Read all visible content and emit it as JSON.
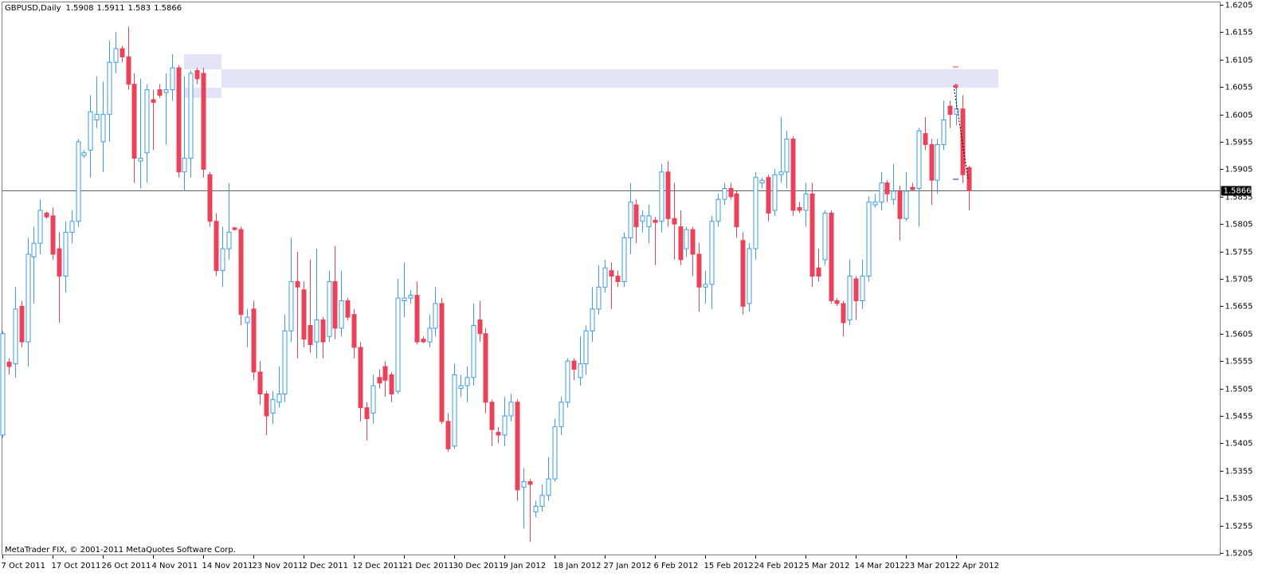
{
  "chart_data": {
    "type": "candlestick",
    "title": "GBPUSD,Daily",
    "copyright": "MetaTrader FIX, © 2001-2011 MetaQuotes Software Corp.",
    "up_color": "#3d9be9",
    "down_color": "#e8435a",
    "ylim": [
      1.5205,
      1.6205
    ],
    "yticks": [
      1.6205,
      1.6155,
      1.6105,
      1.6055,
      1.6005,
      1.5955,
      1.5905,
      1.5855,
      1.5805,
      1.5755,
      1.5705,
      1.5655,
      1.5605,
      1.5555,
      1.5505,
      1.5455,
      1.5405,
      1.5355,
      1.5305,
      1.5255,
      1.5205
    ],
    "categories": [
      "7 Oct 2011",
      null,
      null,
      null,
      null,
      null,
      null,
      null,
      "17 Oct 2011",
      null,
      null,
      null,
      null,
      null,
      null,
      null,
      "26 Oct 2011",
      null,
      null,
      null,
      null,
      null,
      null,
      null,
      "4 Nov 2011",
      null,
      null,
      null,
      null,
      null,
      null,
      null,
      "14 Nov 2011",
      null,
      null,
      null,
      null,
      null,
      null,
      null,
      "23 Nov 2011",
      null,
      null,
      null,
      null,
      null,
      null,
      null,
      "2 Dec 2011",
      null,
      null,
      null,
      null,
      null,
      null,
      null,
      "12 Dec 2011",
      null,
      null,
      null,
      null,
      null,
      null,
      null,
      "21 Dec 2011",
      null,
      null,
      null,
      null,
      null,
      null,
      null,
      "30 Dec 2011",
      null,
      null,
      null,
      null,
      null,
      null,
      null,
      "9 Jan 2012",
      null,
      null,
      null,
      null,
      null,
      null,
      null,
      "18 Jan 2012",
      null,
      null,
      null,
      null,
      null,
      null,
      null,
      "27 Jan 2012",
      null,
      null,
      null,
      null,
      null,
      null,
      null,
      "6 Feb 2012",
      null,
      null,
      null,
      null,
      null,
      null,
      null,
      "15 Feb 2012",
      null,
      null,
      null,
      null,
      null,
      null,
      null,
      "24 Feb 2012",
      null,
      null,
      null,
      null,
      null,
      null,
      null,
      "5 Mar 2012",
      null,
      null,
      null,
      null,
      null,
      null,
      null,
      "14 Mar 2012",
      null,
      null,
      null,
      null,
      null,
      null,
      null,
      "23 Mar 2012",
      null,
      null,
      null,
      null,
      null,
      null,
      null,
      "2 Apr 2012",
      null,
      null
    ],
    "open": [
      1.542,
      1.5553,
      1.555,
      1.5655,
      1.559,
      1.5745,
      1.577,
      1.5825,
      1.582,
      1.576,
      1.571,
      1.579,
      1.581,
      1.593,
      1.594,
      1.5995,
      1.5955,
      1.6005,
      1.61,
      1.6125,
      1.611,
      1.606,
      1.592,
      1.5935,
      1.6032,
      1.605,
      1.6045,
      1.605,
      1.609,
      1.59,
      1.5925,
      1.6085,
      1.608,
      1.5895,
      1.581,
      1.572,
      1.576,
      1.5798,
      1.5795,
      1.5625,
      1.565,
      1.5535,
      1.5495,
      1.546,
      1.548,
      1.5495,
      1.561,
      1.57,
      1.5685,
      1.562,
      1.559,
      1.563,
      1.56,
      1.57,
      1.5615,
      1.5665,
      1.564,
      1.558,
      1.547,
      1.546,
      1.5525,
      1.5545,
      1.553,
      1.55,
      1.5665,
      1.567,
      1.5675,
      1.5595,
      1.559,
      1.5615,
      1.566,
      1.5445,
      1.54,
      1.5505,
      1.551,
      1.5525,
      1.563,
      1.5605,
      1.548,
      1.5425,
      1.542,
      1.5455,
      1.548,
      1.5325,
      1.5335,
      1.528,
      1.529,
      1.531,
      1.534,
      1.5435,
      1.548,
      1.5555,
      1.5525,
      1.555,
      1.561,
      1.565,
      1.569,
      1.572,
      1.571,
      1.57,
      1.578,
      1.584,
      1.581,
      1.58,
      1.5812,
      1.581,
      1.59,
      1.5815,
      1.58,
      1.576,
      1.5795,
      1.575,
      1.569,
      1.5695,
      1.581,
      1.585,
      1.587,
      1.586,
      1.5775,
      1.566,
      1.576,
      1.588,
      1.589,
      1.583,
      1.5895,
      1.59,
      1.596,
      1.5835,
      1.583,
      1.586,
      1.5725,
      1.574,
      1.5825,
      1.5665,
      1.566,
      1.563,
      1.5705,
      1.5665,
      1.571,
      1.584,
      1.5845,
      1.588,
      1.585,
      1.5865,
      1.5815,
      1.5872,
      1.587,
      1.597,
      1.595,
      1.5885,
      1.595,
      1.602,
      1.6005,
      1.6015,
      1.5908
    ],
    "high": [
      1.561,
      1.556,
      1.569,
      1.5665,
      1.578,
      1.58,
      1.585,
      1.5828,
      1.5835,
      1.579,
      1.581,
      1.583,
      1.596,
      1.594,
      1.604,
      1.6075,
      1.6065,
      1.614,
      1.6155,
      1.613,
      1.6165,
      1.608,
      1.607,
      1.606,
      1.605,
      1.606,
      1.608,
      1.6115,
      1.6095,
      1.6075,
      1.6085,
      1.609,
      1.609,
      1.59,
      1.5825,
      1.58,
      1.588,
      1.58,
      1.58,
      1.565,
      1.5665,
      1.5555,
      1.55,
      1.55,
      1.5545,
      1.564,
      1.578,
      1.5755,
      1.57,
      1.574,
      1.576,
      1.5635,
      1.572,
      1.5765,
      1.572,
      1.567,
      1.565,
      1.559,
      1.548,
      1.553,
      1.554,
      1.5555,
      1.5535,
      1.5705,
      1.5735,
      1.5685,
      1.57,
      1.56,
      1.564,
      1.569,
      1.567,
      1.546,
      1.555,
      1.553,
      1.5545,
      1.566,
      1.5665,
      1.5615,
      1.5485,
      1.5435,
      1.549,
      1.5495,
      1.5485,
      1.536,
      1.534,
      1.53,
      1.533,
      1.538,
      1.545,
      1.549,
      1.556,
      1.556,
      1.56,
      1.562,
      1.569,
      1.573,
      1.574,
      1.5735,
      1.572,
      1.579,
      1.588,
      1.585,
      1.583,
      1.584,
      1.5818,
      1.5915,
      1.592,
      1.588,
      1.583,
      1.58,
      1.58,
      1.577,
      1.572,
      1.582,
      1.586,
      1.588,
      1.588,
      1.5865,
      1.579,
      1.577,
      1.59,
      1.589,
      1.5895,
      1.5905,
      1.6,
      1.5975,
      1.5965,
      1.5845,
      1.588,
      1.588,
      1.576,
      1.583,
      1.583,
      1.567,
      1.5665,
      1.574,
      1.571,
      1.574,
      1.5855,
      1.586,
      1.59,
      1.5885,
      1.5915,
      1.5875,
      1.59,
      1.588,
      1.598,
      1.6,
      1.596,
      1.596,
      1.603,
      1.603,
      1.6055,
      1.604,
      1.5911
    ],
    "low": [
      1.5415,
      1.553,
      1.5525,
      1.558,
      1.5545,
      1.566,
      1.575,
      1.5815,
      1.574,
      1.5625,
      1.568,
      1.577,
      1.58,
      1.5925,
      1.589,
      1.598,
      1.59,
      1.5955,
      1.608,
      1.61,
      1.605,
      1.588,
      1.587,
      1.588,
      1.594,
      1.6035,
      1.595,
      1.603,
      1.589,
      1.5865,
      1.589,
      1.606,
      1.589,
      1.58,
      1.571,
      1.569,
      1.574,
      1.5793,
      1.562,
      1.558,
      1.552,
      1.5475,
      1.542,
      1.544,
      1.547,
      1.548,
      1.559,
      1.556,
      1.558,
      1.557,
      1.556,
      1.556,
      1.559,
      1.5595,
      1.56,
      1.563,
      1.556,
      1.5445,
      1.541,
      1.544,
      1.5505,
      1.549,
      1.548,
      1.5495,
      1.5635,
      1.566,
      1.5585,
      1.5588,
      1.558,
      1.56,
      1.544,
      1.539,
      1.5395,
      1.549,
      1.548,
      1.551,
      1.559,
      1.546,
      1.54,
      1.5405,
      1.54,
      1.5445,
      1.53,
      1.525,
      1.5225,
      1.527,
      1.528,
      1.53,
      1.5335,
      1.542,
      1.547,
      1.552,
      1.551,
      1.553,
      1.559,
      1.564,
      1.568,
      1.565,
      1.569,
      1.569,
      1.575,
      1.577,
      1.579,
      1.577,
      1.573,
      1.579,
      1.58,
      1.574,
      1.573,
      1.5745,
      1.571,
      1.5645,
      1.566,
      1.565,
      1.58,
      1.584,
      1.585,
      1.578,
      1.564,
      1.5645,
      1.574,
      1.587,
      1.581,
      1.582,
      1.588,
      1.587,
      1.582,
      1.5825,
      1.58,
      1.569,
      1.57,
      1.573,
      1.566,
      1.5655,
      1.56,
      1.562,
      1.563,
      1.565,
      1.57,
      1.5835,
      1.583,
      1.5845,
      1.584,
      1.5775,
      1.581,
      1.5865,
      1.58,
      1.594,
      1.584,
      1.586,
      1.594,
      1.598,
      1.5985,
      1.588,
      1.583
    ],
    "close": [
      1.5605,
      1.5545,
      1.565,
      1.559,
      1.575,
      1.577,
      1.583,
      1.5818,
      1.575,
      1.571,
      1.579,
      1.581,
      1.5955,
      1.5935,
      1.601,
      1.6005,
      1.6005,
      1.61,
      1.6125,
      1.611,
      1.606,
      1.5925,
      1.5925,
      1.605,
      1.6027,
      1.604,
      1.605,
      1.609,
      1.59,
      1.5925,
      1.608,
      1.607,
      1.5905,
      1.581,
      1.572,
      1.576,
      1.579,
      1.5795,
      1.564,
      1.5635,
      1.5535,
      1.5495,
      1.5455,
      1.5485,
      1.5495,
      1.561,
      1.57,
      1.569,
      1.5595,
      1.5585,
      1.563,
      1.559,
      1.57,
      1.5615,
      1.5665,
      1.5635,
      1.558,
      1.547,
      1.545,
      1.551,
      1.5515,
      1.552,
      1.5495,
      1.567,
      1.567,
      1.5675,
      1.559,
      1.559,
      1.5615,
      1.566,
      1.5445,
      1.5395,
      1.553,
      1.551,
      1.5525,
      1.562,
      1.5605,
      1.548,
      1.543,
      1.542,
      1.5455,
      1.548,
      1.532,
      1.5335,
      1.533,
      1.529,
      1.531,
      1.534,
      1.5435,
      1.548,
      1.5555,
      1.554,
      1.555,
      1.561,
      1.565,
      1.569,
      1.5725,
      1.571,
      1.57,
      1.578,
      1.5845,
      1.58,
      1.582,
      1.582,
      1.5808,
      1.59,
      1.5815,
      1.5805,
      1.574,
      1.5795,
      1.575,
      1.569,
      1.5695,
      1.581,
      1.585,
      1.587,
      1.5855,
      1.58,
      1.5655,
      1.576,
      1.589,
      1.5885,
      1.5825,
      1.5895,
      1.59,
      1.596,
      1.583,
      1.583,
      1.586,
      1.571,
      1.571,
      1.5825,
      1.5665,
      1.566,
      1.5625,
      1.571,
      1.5665,
      1.571,
      1.5845,
      1.5845,
      1.588,
      1.586,
      1.5865,
      1.5815,
      1.5865,
      1.5868,
      1.5975,
      1.595,
      1.5885,
      1.595,
      1.5995,
      1.6005,
      1.6015,
      1.5895,
      1.5866
    ]
  }
}
